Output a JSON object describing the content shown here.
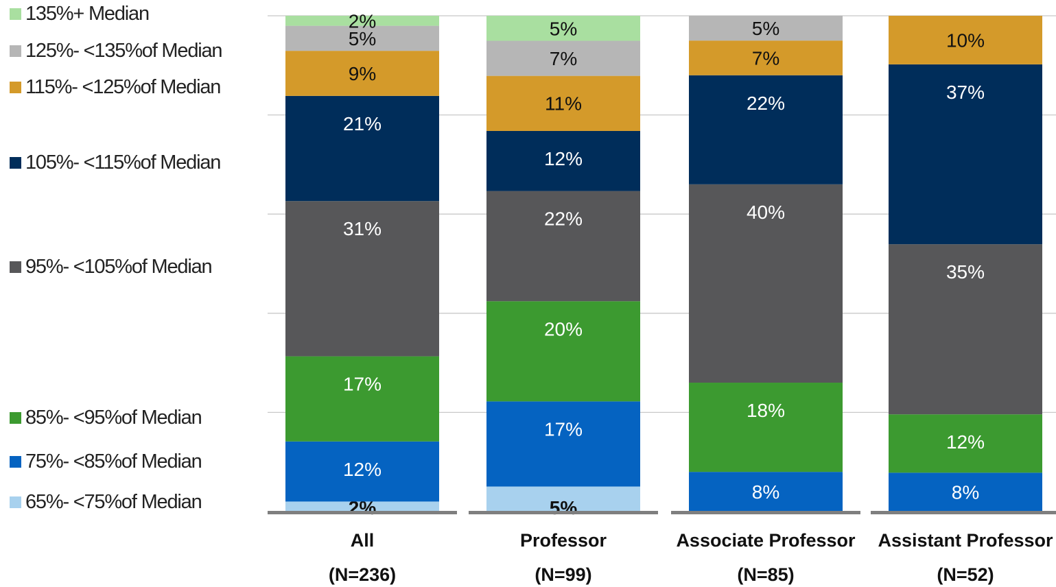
{
  "chart_data": {
    "type": "bar",
    "stacked": true,
    "categories": [
      "All",
      "Professor",
      "Associate Professor",
      "Assistant Professor"
    ],
    "category_counts": [
      "(N=236)",
      "(N=99)",
      "(N=85)",
      "(N=52)"
    ],
    "series": [
      {
        "name": "65%- <75%of Median",
        "color": "#a8d1ee",
        "values": [
          2,
          5,
          0,
          0
        ]
      },
      {
        "name": "75%- <85%of Median",
        "color": "#0563c1",
        "values": [
          12,
          17,
          8,
          8
        ]
      },
      {
        "name": "85%- <95%of Median",
        "color": "#3c9a30",
        "values": [
          17,
          20,
          18,
          12
        ]
      },
      {
        "name": "95%- <105%of Median",
        "color": "#575759",
        "values": [
          31,
          22,
          40,
          35
        ]
      },
      {
        "name": "105%- <115%of Median",
        "color": "#002d5a",
        "values": [
          21,
          12,
          22,
          37
        ]
      },
      {
        "name": "115%- <125%of Median",
        "color": "#d49a2a",
        "values": [
          9,
          11,
          7,
          10
        ]
      },
      {
        "name": "125%- <135%of Median",
        "color": "#b6b6b6",
        "values": [
          5,
          7,
          5,
          0
        ]
      },
      {
        "name": "135%+ Median",
        "color": "#a9dfa0",
        "values": [
          2,
          5,
          0,
          0
        ]
      }
    ],
    "data_labels": [
      [
        "2%",
        "12%",
        "17%",
        "31%",
        "21%",
        "9%",
        "5%",
        "2%"
      ],
      [
        "5%",
        "17%",
        "20%",
        "22%",
        "12%",
        "11%",
        "7%",
        "5%"
      ],
      [
        "",
        "8%",
        "18%",
        "40%",
        "22%",
        "7%",
        "5%",
        ""
      ],
      [
        "",
        "8%",
        "12%",
        "35%",
        "37%",
        "10%",
        "",
        ""
      ]
    ],
    "ylim": [
      0,
      100
    ],
    "grid": true,
    "legend_position": "left",
    "title": "",
    "xlabel": "",
    "ylabel": ""
  },
  "legend": {
    "items": [
      {
        "label": "135%+  Median",
        "color": "#a9dfa0"
      },
      {
        "label": "125%- <135%of Median",
        "color": "#b6b6b6"
      },
      {
        "label": "115%- <125%of Median",
        "color": "#d49a2a"
      },
      {
        "label": "105%- <115%of Median",
        "color": "#002d5a"
      },
      {
        "label": "95%- <105%of Median",
        "color": "#575759"
      },
      {
        "label": "85%- <95%of Median",
        "color": "#3c9a30"
      },
      {
        "label": "75%- <85%of Median",
        "color": "#0563c1"
      },
      {
        "label": "65%- <75%of Median",
        "color": "#a8d1ee"
      }
    ]
  }
}
